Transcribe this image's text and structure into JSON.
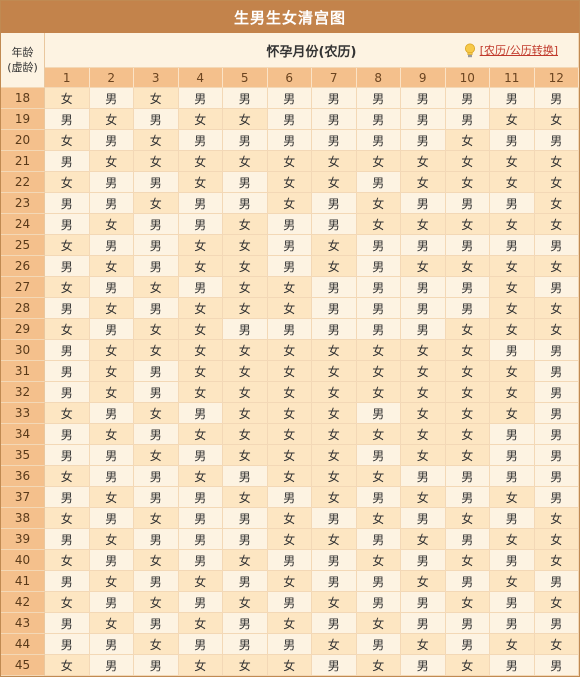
{
  "page": {
    "title": "生男生女清宫图",
    "age_label_line1": "年龄",
    "age_label_line2": "(虚龄)",
    "month_header": "怀孕月份(农历)",
    "toggle_label": "[农历/公历转换]"
  },
  "months": [
    "1",
    "2",
    "3",
    "4",
    "5",
    "6",
    "7",
    "8",
    "9",
    "10",
    "11",
    "12"
  ],
  "rows": [
    {
      "age": "18",
      "cells": [
        "女",
        "男",
        "女",
        "男",
        "男",
        "男",
        "男",
        "男",
        "男",
        "男",
        "男",
        "男"
      ]
    },
    {
      "age": "19",
      "cells": [
        "男",
        "女",
        "男",
        "女",
        "女",
        "男",
        "男",
        "男",
        "男",
        "男",
        "女",
        "女"
      ]
    },
    {
      "age": "20",
      "cells": [
        "女",
        "男",
        "女",
        "男",
        "男",
        "男",
        "男",
        "男",
        "男",
        "女",
        "男",
        "男"
      ]
    },
    {
      "age": "21",
      "cells": [
        "男",
        "女",
        "女",
        "女",
        "女",
        "女",
        "女",
        "女",
        "女",
        "女",
        "女",
        "女"
      ]
    },
    {
      "age": "22",
      "cells": [
        "女",
        "男",
        "男",
        "女",
        "男",
        "女",
        "女",
        "男",
        "女",
        "女",
        "女",
        "女"
      ]
    },
    {
      "age": "23",
      "cells": [
        "男",
        "男",
        "女",
        "男",
        "男",
        "女",
        "男",
        "女",
        "男",
        "男",
        "男",
        "女"
      ]
    },
    {
      "age": "24",
      "cells": [
        "男",
        "女",
        "男",
        "男",
        "女",
        "男",
        "男",
        "女",
        "女",
        "女",
        "女",
        "女"
      ]
    },
    {
      "age": "25",
      "cells": [
        "女",
        "男",
        "男",
        "女",
        "女",
        "男",
        "女",
        "男",
        "男",
        "男",
        "男",
        "男"
      ]
    },
    {
      "age": "26",
      "cells": [
        "男",
        "女",
        "男",
        "女",
        "女",
        "男",
        "女",
        "男",
        "女",
        "女",
        "女",
        "女"
      ]
    },
    {
      "age": "27",
      "cells": [
        "女",
        "男",
        "女",
        "男",
        "女",
        "女",
        "男",
        "男",
        "男",
        "男",
        "女",
        "男"
      ]
    },
    {
      "age": "28",
      "cells": [
        "男",
        "女",
        "男",
        "女",
        "女",
        "女",
        "男",
        "男",
        "男",
        "男",
        "女",
        "女"
      ]
    },
    {
      "age": "29",
      "cells": [
        "女",
        "男",
        "女",
        "女",
        "男",
        "男",
        "男",
        "男",
        "男",
        "女",
        "女",
        "女"
      ]
    },
    {
      "age": "30",
      "cells": [
        "男",
        "女",
        "女",
        "女",
        "女",
        "女",
        "女",
        "女",
        "女",
        "女",
        "男",
        "男"
      ]
    },
    {
      "age": "31",
      "cells": [
        "男",
        "女",
        "男",
        "女",
        "女",
        "女",
        "女",
        "女",
        "女",
        "女",
        "女",
        "男"
      ]
    },
    {
      "age": "32",
      "cells": [
        "男",
        "女",
        "男",
        "女",
        "女",
        "女",
        "女",
        "女",
        "女",
        "女",
        "女",
        "男"
      ]
    },
    {
      "age": "33",
      "cells": [
        "女",
        "男",
        "女",
        "男",
        "女",
        "女",
        "女",
        "男",
        "女",
        "女",
        "女",
        "男"
      ]
    },
    {
      "age": "34",
      "cells": [
        "男",
        "女",
        "男",
        "女",
        "女",
        "女",
        "女",
        "女",
        "女",
        "女",
        "男",
        "男"
      ]
    },
    {
      "age": "35",
      "cells": [
        "男",
        "男",
        "女",
        "男",
        "女",
        "女",
        "女",
        "男",
        "女",
        "女",
        "男",
        "男"
      ]
    },
    {
      "age": "36",
      "cells": [
        "女",
        "男",
        "男",
        "女",
        "男",
        "女",
        "女",
        "女",
        "男",
        "男",
        "男",
        "男"
      ]
    },
    {
      "age": "37",
      "cells": [
        "男",
        "女",
        "男",
        "男",
        "女",
        "男",
        "女",
        "男",
        "女",
        "男",
        "女",
        "男"
      ]
    },
    {
      "age": "38",
      "cells": [
        "女",
        "男",
        "女",
        "男",
        "男",
        "女",
        "男",
        "女",
        "男",
        "女",
        "男",
        "女"
      ]
    },
    {
      "age": "39",
      "cells": [
        "男",
        "女",
        "男",
        "男",
        "男",
        "女",
        "女",
        "男",
        "女",
        "男",
        "女",
        "女"
      ]
    },
    {
      "age": "40",
      "cells": [
        "女",
        "男",
        "女",
        "男",
        "女",
        "男",
        "男",
        "女",
        "男",
        "女",
        "男",
        "女"
      ]
    },
    {
      "age": "41",
      "cells": [
        "男",
        "女",
        "男",
        "女",
        "男",
        "女",
        "男",
        "男",
        "女",
        "男",
        "女",
        "男"
      ]
    },
    {
      "age": "42",
      "cells": [
        "女",
        "男",
        "女",
        "男",
        "女",
        "男",
        "女",
        "男",
        "男",
        "女",
        "男",
        "女"
      ]
    },
    {
      "age": "43",
      "cells": [
        "男",
        "女",
        "男",
        "女",
        "男",
        "女",
        "男",
        "女",
        "男",
        "男",
        "男",
        "男"
      ]
    },
    {
      "age": "44",
      "cells": [
        "男",
        "男",
        "女",
        "男",
        "男",
        "男",
        "女",
        "男",
        "女",
        "男",
        "女",
        "女"
      ]
    },
    {
      "age": "45",
      "cells": [
        "女",
        "男",
        "男",
        "女",
        "女",
        "女",
        "男",
        "女",
        "男",
        "女",
        "男",
        "男"
      ]
    }
  ],
  "colors": {
    "boy_cell": "#fdf3e2",
    "girl_cell": "#fde6c2",
    "header": "#c3834b",
    "month_header": "#f4c08c"
  }
}
